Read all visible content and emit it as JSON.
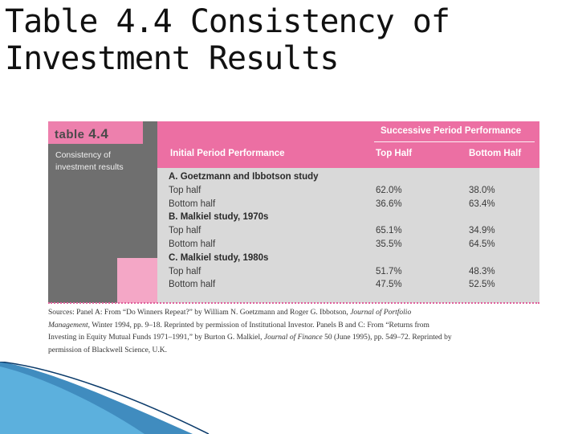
{
  "slide": {
    "title_line1": "Table 4.4 Consistency of",
    "title_line2": "Investment Results"
  },
  "table": {
    "tab_word": "table",
    "tab_number": "4.4",
    "caption_line1": "Consistency of",
    "caption_line2": "investment results",
    "header_group": "Successive Period Performance",
    "columns": [
      "Initial Period Performance",
      "Top Half",
      "Bottom Half"
    ],
    "rows": [
      {
        "label": "A. Goetzmann and Ibbotson study",
        "top": "",
        "bottom": "",
        "section": true
      },
      {
        "label": "Top half",
        "top": "62.0%",
        "bottom": "38.0%",
        "section": false
      },
      {
        "label": "Bottom half",
        "top": "36.6%",
        "bottom": "63.4%",
        "section": false
      },
      {
        "label": "B. Malkiel study, 1970s",
        "top": "",
        "bottom": "",
        "section": true
      },
      {
        "label": "Top half",
        "top": "65.1%",
        "bottom": "34.9%",
        "section": false
      },
      {
        "label": "Bottom half",
        "top": "35.5%",
        "bottom": "64.5%",
        "section": false
      },
      {
        "label": "C. Malkiel study, 1980s",
        "top": "",
        "bottom": "",
        "section": true
      },
      {
        "label": "Top half",
        "top": "51.7%",
        "bottom": "48.3%",
        "section": false
      },
      {
        "label": "Bottom half",
        "top": "47.5%",
        "bottom": "52.5%",
        "section": false
      }
    ]
  },
  "sources": {
    "line1_a": "Sources: Panel A: From “Do Winners Repeat?” by William N. Goetzmann and Roger G. Ibbotson, ",
    "line1_journal": "Journal of Portfolio",
    "line2_journal": "Management",
    "line2_b": ", Winter 1994, pp. 9–18. Reprinted by permission of Institutional Investor. Panels B and C: From “Returns from",
    "line3_a": "Investing in Equity Mutual Funds 1971–1991,” by Burton G. Malkiel, ",
    "line3_journal": "Journal of Finance",
    "line3_b": " 50 (June 1995), pp. 549–72. Reprinted by",
    "line4": "permission of Blackwell Science, U.K."
  },
  "colors": {
    "header_pink": "#ec6fa3",
    "tab_pink": "#ed80ad",
    "side_gray": "#6f6f6f",
    "body_gray": "#d9d9d9",
    "accent_blue": "#1f78b4"
  }
}
